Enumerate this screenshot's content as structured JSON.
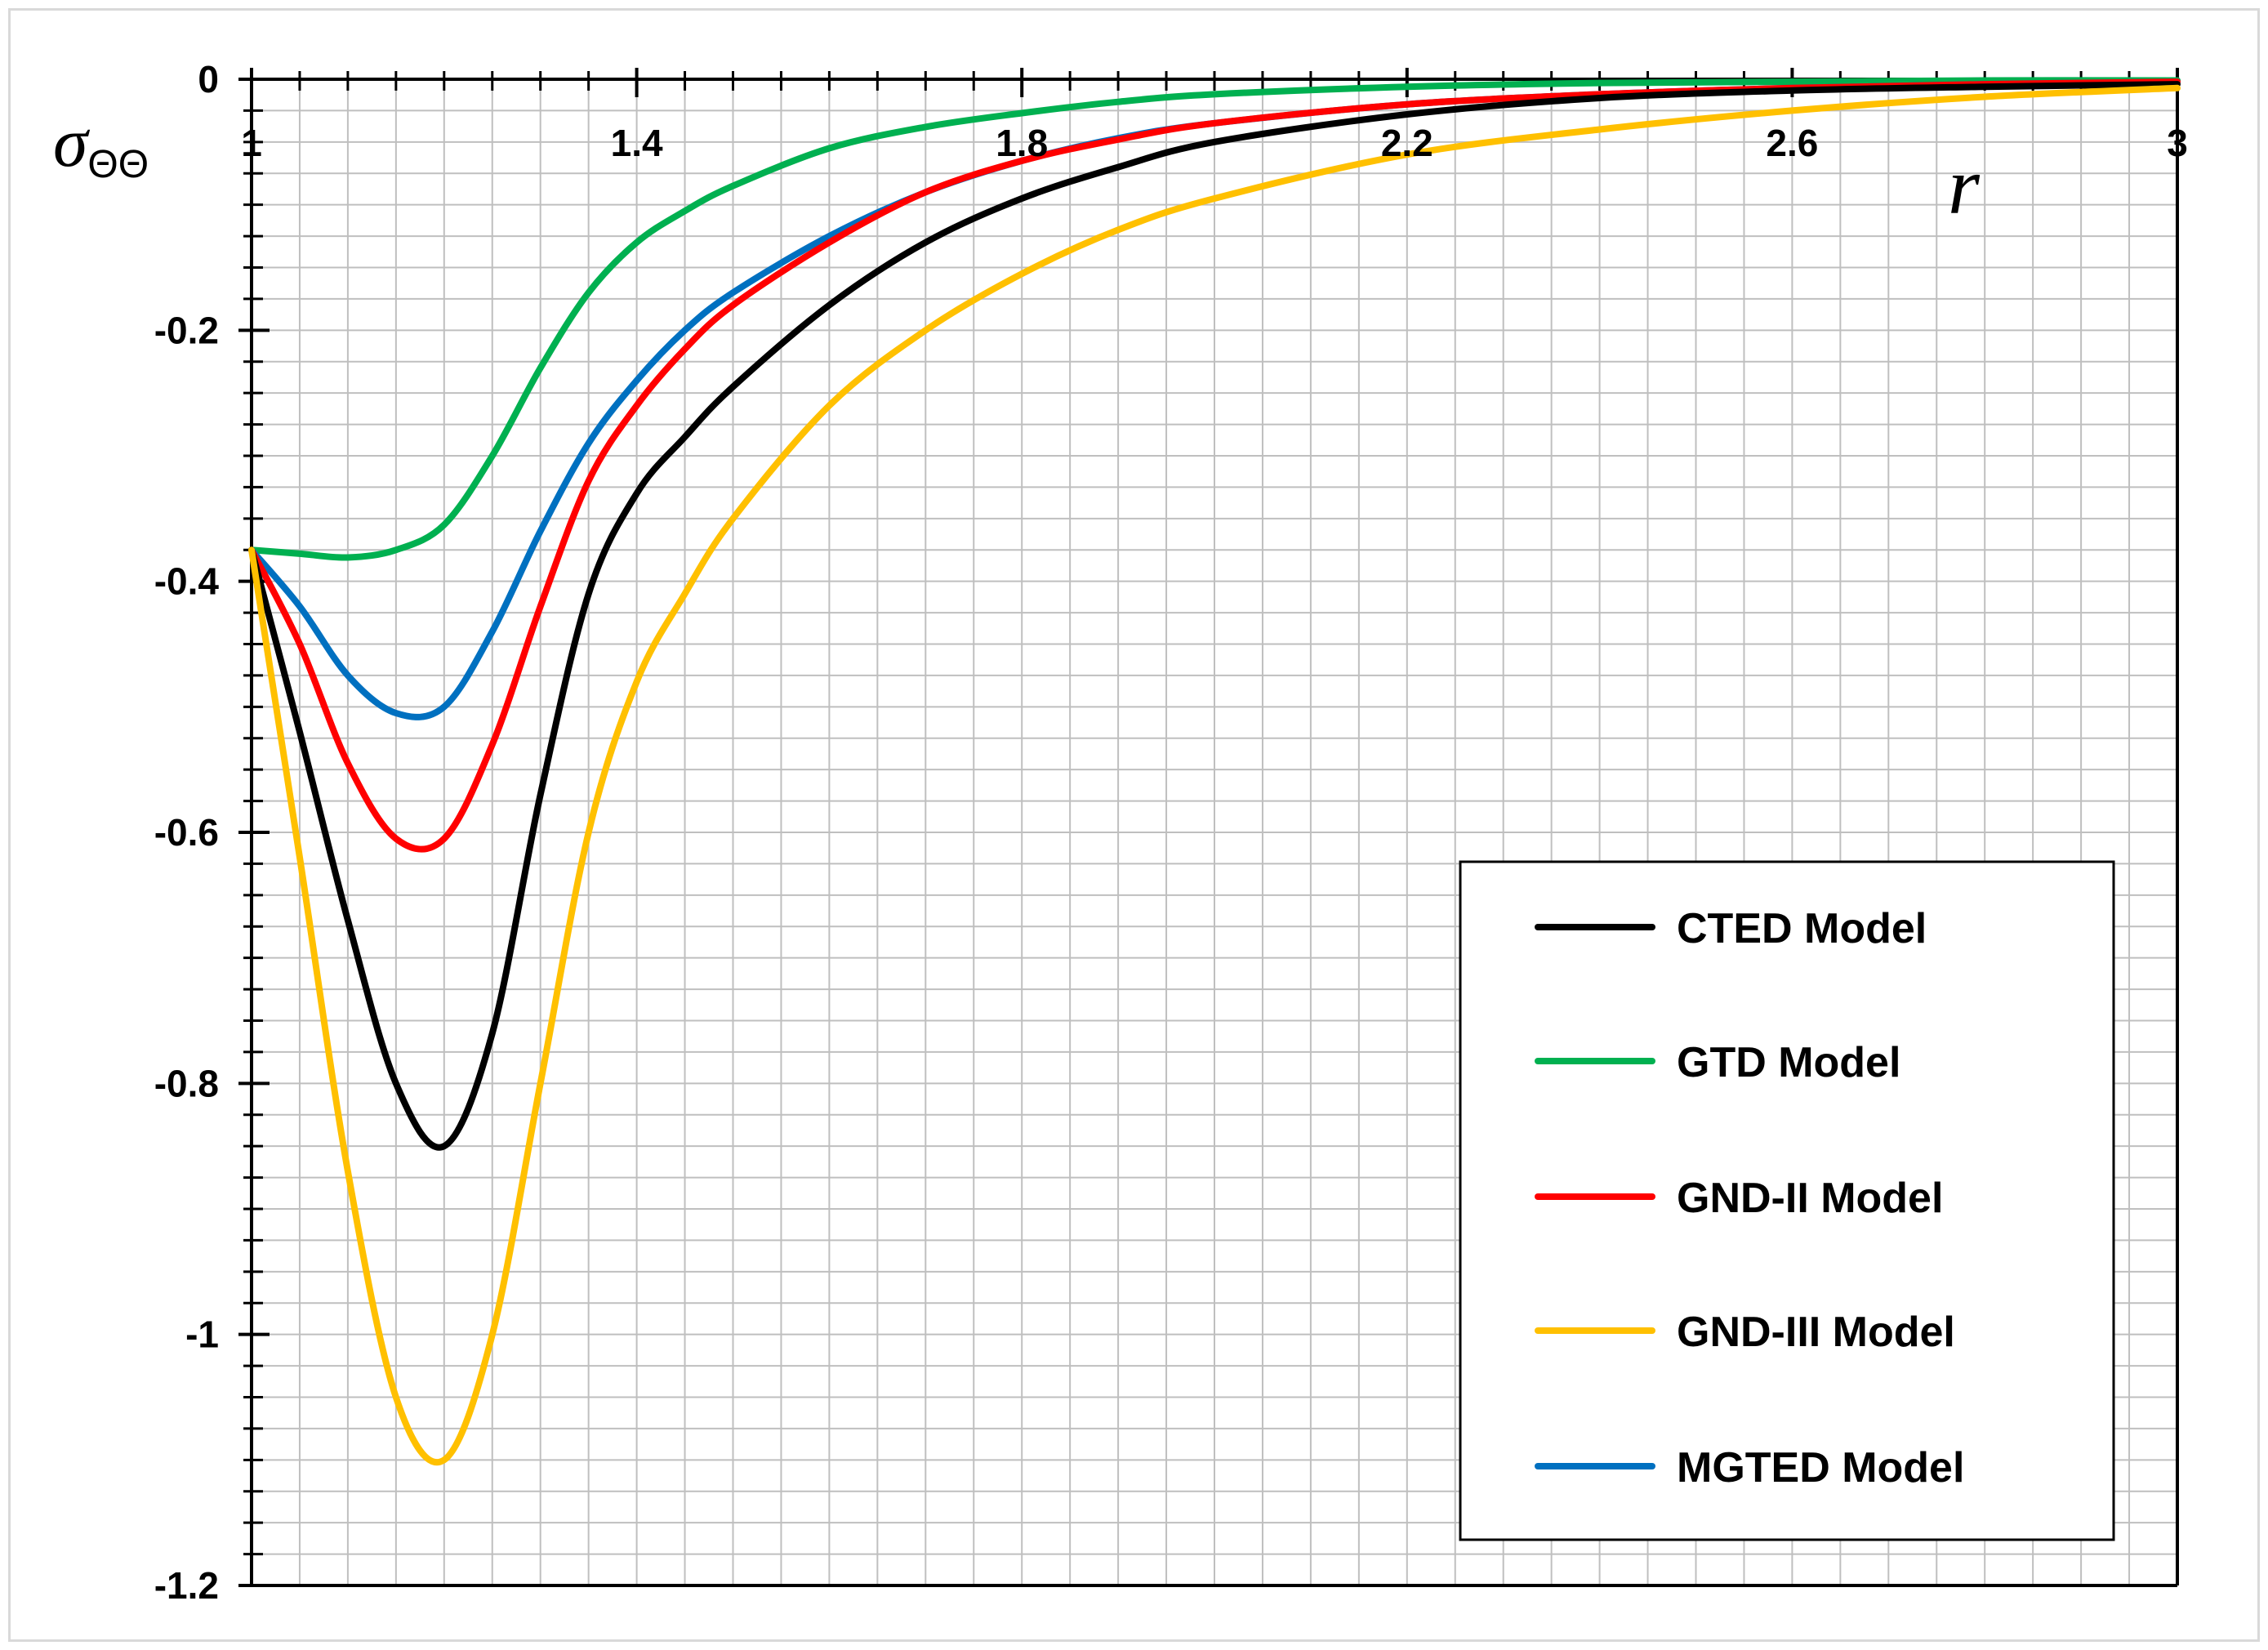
{
  "chart_data": {
    "type": "line",
    "title": "",
    "xlabel": "r",
    "ylabel": {
      "symbol": "σ",
      "subscript": "ΘΘ"
    },
    "xlim": [
      1,
      3
    ],
    "ylim": [
      -1.2,
      0
    ],
    "xticks": [
      1,
      1.4,
      1.8,
      2.2,
      2.6,
      3
    ],
    "xtick_labels": [
      "1",
      "1.4",
      "1.8",
      "2.2",
      "2.6",
      "3"
    ],
    "yticks": [
      0,
      -0.2,
      -0.4,
      -0.6,
      -0.8,
      -1,
      -1.2
    ],
    "ytick_labels": [
      "0",
      "-0.2",
      "-0.4",
      "-0.6",
      "-0.8",
      "-1",
      "-1.2"
    ],
    "grid": true,
    "legend_position": "bottom-right",
    "series": [
      {
        "name": "CTED Model",
        "color": "#000000",
        "x": [
          1.0,
          1.05,
          1.1,
          1.15,
          1.2,
          1.25,
          1.3,
          1.35,
          1.4,
          1.45,
          1.5,
          1.6,
          1.7,
          1.8,
          1.9,
          2.0,
          2.2,
          2.4,
          2.6,
          2.8,
          3.0
        ],
        "y": [
          -0.375,
          -0.52,
          -0.67,
          -0.8,
          -0.85,
          -0.76,
          -0.57,
          -0.41,
          -0.33,
          -0.285,
          -0.245,
          -0.18,
          -0.13,
          -0.095,
          -0.07,
          -0.05,
          -0.028,
          -0.015,
          -0.009,
          -0.006,
          -0.004
        ]
      },
      {
        "name": "GTD Model",
        "color": "#00b050",
        "x": [
          1.0,
          1.05,
          1.1,
          1.15,
          1.2,
          1.25,
          1.3,
          1.35,
          1.4,
          1.45,
          1.5,
          1.6,
          1.7,
          1.8,
          1.9,
          2.0,
          2.2,
          2.4,
          2.6,
          2.8,
          3.0
        ],
        "y": [
          -0.375,
          -0.378,
          -0.381,
          -0.375,
          -0.355,
          -0.3,
          -0.23,
          -0.17,
          -0.13,
          -0.105,
          -0.085,
          -0.055,
          -0.038,
          -0.027,
          -0.018,
          -0.012,
          -0.006,
          -0.003,
          -0.002,
          -0.001,
          -0.001
        ]
      },
      {
        "name": "GND-II Model",
        "color": "#ff0000",
        "x": [
          1.0,
          1.05,
          1.1,
          1.15,
          1.2,
          1.25,
          1.3,
          1.35,
          1.4,
          1.45,
          1.5,
          1.6,
          1.7,
          1.8,
          1.9,
          2.0,
          2.2,
          2.4,
          2.6,
          2.8,
          3.0
        ],
        "y": [
          -0.375,
          -0.45,
          -0.545,
          -0.605,
          -0.605,
          -0.53,
          -0.42,
          -0.32,
          -0.26,
          -0.215,
          -0.18,
          -0.13,
          -0.09,
          -0.065,
          -0.048,
          -0.035,
          -0.02,
          -0.012,
          -0.007,
          -0.004,
          -0.002
        ]
      },
      {
        "name": "GND-III Model",
        "color": "#ffc000",
        "x": [
          1.0,
          1.05,
          1.1,
          1.15,
          1.2,
          1.25,
          1.3,
          1.35,
          1.4,
          1.45,
          1.5,
          1.6,
          1.7,
          1.8,
          1.9,
          2.0,
          2.2,
          2.4,
          2.6,
          2.8,
          3.0
        ],
        "y": [
          -0.375,
          -0.62,
          -0.87,
          -1.05,
          -1.1,
          -1.0,
          -0.8,
          -0.6,
          -0.48,
          -0.41,
          -0.35,
          -0.26,
          -0.2,
          -0.155,
          -0.12,
          -0.095,
          -0.06,
          -0.04,
          -0.025,
          -0.014,
          -0.007
        ]
      },
      {
        "name": "MGTED Model",
        "color": "#0070c0",
        "x": [
          1.0,
          1.05,
          1.1,
          1.15,
          1.2,
          1.25,
          1.3,
          1.35,
          1.4,
          1.45,
          1.5,
          1.6,
          1.7,
          1.8,
          1.9,
          2.0,
          2.2,
          2.4,
          2.6,
          2.8,
          3.0
        ],
        "y": [
          -0.375,
          -0.42,
          -0.475,
          -0.505,
          -0.5,
          -0.44,
          -0.36,
          -0.29,
          -0.24,
          -0.2,
          -0.17,
          -0.125,
          -0.09,
          -0.065,
          -0.047,
          -0.035,
          -0.02,
          -0.012,
          -0.007,
          -0.004,
          -0.002
        ]
      }
    ]
  }
}
